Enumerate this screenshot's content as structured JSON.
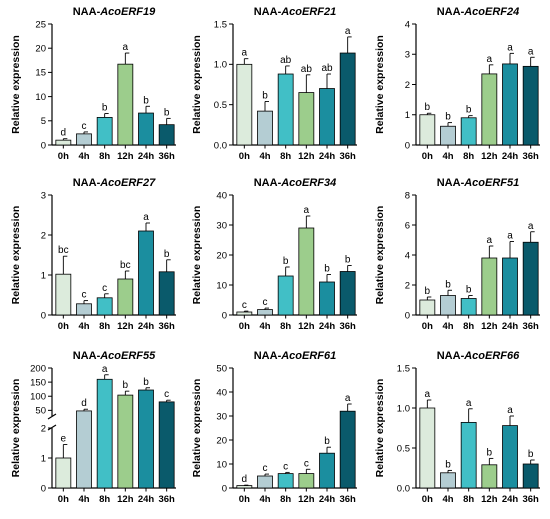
{
  "colors": [
    "#dcebdc",
    "#b4cdd3",
    "#41bfc6",
    "#9ccd8c",
    "#1b8e9f",
    "#0a5a6b"
  ],
  "chart_data": [
    {
      "type": "bar",
      "title_prefix": "NAA-",
      "title_gene": "AcoERF19",
      "ylabel": "Relative expression",
      "categories": [
        "0h",
        "4h",
        "8h",
        "12h",
        "24h",
        "36h"
      ],
      "values": [
        1.0,
        2.3,
        5.7,
        16.7,
        6.6,
        4.2
      ],
      "errors": [
        0.3,
        0.4,
        0.8,
        2.3,
        1.4,
        1.3
      ],
      "letters": [
        "d",
        "c",
        "b",
        "a",
        "b",
        "b"
      ],
      "ylim": [
        0,
        25
      ],
      "yticks": [
        0,
        5,
        10,
        15,
        20,
        25
      ],
      "ytick_labels": [
        "0",
        "5",
        "10",
        "15",
        "20",
        "25"
      ]
    },
    {
      "type": "bar",
      "title_prefix": "NAA-",
      "title_gene": "AcoERF21",
      "ylabel": "Relative expression",
      "categories": [
        "0h",
        "4h",
        "8h",
        "12h",
        "24h",
        "36h"
      ],
      "values": [
        1.0,
        0.42,
        0.88,
        0.65,
        0.7,
        1.14
      ],
      "errors": [
        0.07,
        0.12,
        0.1,
        0.22,
        0.18,
        0.2
      ],
      "letters": [
        "a",
        "b",
        "ab",
        "ab",
        "ab",
        "a"
      ],
      "ylim": [
        0,
        1.5
      ],
      "yticks": [
        0,
        0.5,
        1.0,
        1.5
      ],
      "ytick_labels": [
        "0.0",
        "0.5",
        "1.0",
        "1.5"
      ]
    },
    {
      "type": "bar",
      "title_prefix": "NAA-",
      "title_gene": "AcoERF24",
      "ylabel": "Relative expression",
      "categories": [
        "0h",
        "4h",
        "8h",
        "12h",
        "24h",
        "36h"
      ],
      "values": [
        1.0,
        0.62,
        0.9,
        2.35,
        2.68,
        2.6
      ],
      "errors": [
        0.05,
        0.12,
        0.07,
        0.3,
        0.35,
        0.3
      ],
      "letters": [
        "b",
        "b",
        "b",
        "a",
        "a",
        "a"
      ],
      "ylim": [
        0,
        4
      ],
      "yticks": [
        0,
        1,
        2,
        3,
        4
      ],
      "ytick_labels": [
        "0",
        "1",
        "2",
        "3",
        "4"
      ]
    },
    {
      "type": "bar",
      "title_prefix": "NAA-",
      "title_gene": "AcoERF27",
      "ylabel": "Relative expression",
      "categories": [
        "0h",
        "4h",
        "8h",
        "12h",
        "24h",
        "36h"
      ],
      "values": [
        1.02,
        0.28,
        0.43,
        0.9,
        2.1,
        1.08
      ],
      "errors": [
        0.45,
        0.08,
        0.1,
        0.2,
        0.2,
        0.3
      ],
      "letters": [
        "bc",
        "c",
        "c",
        "bc",
        "a",
        "b"
      ],
      "ylim": [
        0,
        3
      ],
      "yticks": [
        0,
        1,
        2,
        3
      ],
      "ytick_labels": [
        "0",
        "1",
        "2",
        "3"
      ]
    },
    {
      "type": "bar",
      "title_prefix": "NAA-",
      "title_gene": "AcoERF34",
      "ylabel": "Relative expression",
      "categories": [
        "0h",
        "4h",
        "8h",
        "12h",
        "24h",
        "36h"
      ],
      "values": [
        1.0,
        1.8,
        13.0,
        29.0,
        11.0,
        14.5
      ],
      "errors": [
        0.3,
        0.5,
        3.0,
        4.0,
        2.5,
        2.0
      ],
      "letters": [
        "c",
        "c",
        "b",
        "a",
        "b",
        "b"
      ],
      "ylim": [
        0,
        40
      ],
      "yticks": [
        0,
        10,
        20,
        30,
        40
      ],
      "ytick_labels": [
        "0",
        "10",
        "20",
        "30",
        "40"
      ]
    },
    {
      "type": "bar",
      "title_prefix": "NAA-",
      "title_gene": "AcoERF51",
      "ylabel": "Relative expression",
      "categories": [
        "0h",
        "4h",
        "8h",
        "12h",
        "24h",
        "36h"
      ],
      "values": [
        1.0,
        1.3,
        1.1,
        3.8,
        3.8,
        4.85
      ],
      "errors": [
        0.2,
        0.35,
        0.2,
        0.8,
        1.1,
        0.7
      ],
      "letters": [
        "b",
        "b",
        "b",
        "a",
        "a",
        "a"
      ],
      "ylim": [
        0,
        8
      ],
      "yticks": [
        0,
        2,
        4,
        6,
        8
      ],
      "ytick_labels": [
        "0",
        "2",
        "4",
        "6",
        "8"
      ]
    },
    {
      "type": "bar",
      "title_prefix": "NAA-",
      "title_gene": "AcoERF55",
      "ylabel": "Relative expression",
      "categories": [
        "0h",
        "4h",
        "8h",
        "12h",
        "24h",
        "36h"
      ],
      "values": [
        1.0,
        48,
        160,
        104,
        122,
        80
      ],
      "errors": [
        0.45,
        6,
        16,
        14,
        8,
        6
      ],
      "letters": [
        "e",
        "d",
        "a",
        "b",
        "b",
        "c"
      ],
      "broken_axis": true,
      "ylim": [
        0,
        200
      ],
      "yticks": [
        0,
        1,
        2,
        50,
        100,
        150,
        200
      ],
      "ytick_labels": [
        "0",
        "1",
        "2",
        "50",
        "100",
        "150",
        "200"
      ]
    },
    {
      "type": "bar",
      "title_prefix": "NAA-",
      "title_gene": "AcoERF61",
      "ylabel": "Relative expression",
      "categories": [
        "0h",
        "4h",
        "8h",
        "12h",
        "24h",
        "36h"
      ],
      "values": [
        1.0,
        5.0,
        6.0,
        6.0,
        14.5,
        32.0
      ],
      "errors": [
        0.2,
        0.8,
        0.5,
        1.8,
        2.5,
        3.0
      ],
      "letters": [
        "d",
        "c",
        "c",
        "c",
        "b",
        "a"
      ],
      "ylim": [
        0,
        50
      ],
      "yticks": [
        0,
        10,
        20,
        30,
        40,
        50
      ],
      "ytick_labels": [
        "0",
        "10",
        "20",
        "30",
        "40",
        "50"
      ]
    },
    {
      "type": "bar",
      "title_prefix": "NAA-",
      "title_gene": "AcoERF66",
      "ylabel": "Relative expression",
      "categories": [
        "0h",
        "4h",
        "8h",
        "12h",
        "24h",
        "36h"
      ],
      "values": [
        1.0,
        0.19,
        0.82,
        0.29,
        0.78,
        0.3
      ],
      "errors": [
        0.1,
        0.03,
        0.17,
        0.08,
        0.12,
        0.05
      ],
      "letters": [
        "a",
        "b",
        "a",
        "b",
        "a",
        "b"
      ],
      "ylim": [
        0,
        1.5
      ],
      "yticks": [
        0,
        0.5,
        1.0,
        1.5
      ],
      "ytick_labels": [
        "0.0",
        "0.5",
        "1.0",
        "1.5"
      ]
    }
  ]
}
